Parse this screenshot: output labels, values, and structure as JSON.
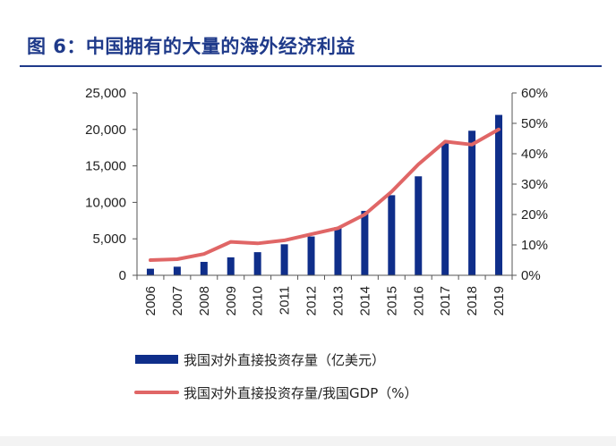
{
  "figure": {
    "title": "图 6：中国拥有的大量的海外经济利益"
  },
  "colors": {
    "title": "#1f3a8a",
    "bar": "#0f2e8a",
    "line": "#e06666",
    "axis": "#555555"
  },
  "chart_data": {
    "type": "bar",
    "categories": [
      "2006",
      "2007",
      "2008",
      "2009",
      "2010",
      "2011",
      "2012",
      "2013",
      "2014",
      "2015",
      "2016",
      "2017",
      "2018",
      "2019"
    ],
    "series": [
      {
        "name": "我国对外直接投资存量（亿美元）",
        "type": "bar",
        "axis": "left",
        "values": [
          900,
          1180,
          1840,
          2460,
          3170,
          4250,
          5320,
          6600,
          8830,
          10980,
          13570,
          18090,
          19820,
          21990
        ]
      },
      {
        "name": "我国对外直接投资存量/我国GDP（%）",
        "type": "line",
        "axis": "right",
        "values": [
          5.0,
          5.3,
          7.0,
          11.0,
          10.5,
          11.5,
          13.5,
          15.5,
          20.0,
          27.5,
          36.5,
          44.0,
          43.0,
          48.0
        ]
      }
    ],
    "yleft": {
      "ylim": [
        0,
        25000
      ],
      "ticks": [
        "0",
        "5,000",
        "10,000",
        "15,000",
        "20,000",
        "25,000"
      ]
    },
    "yright": {
      "ylim": [
        0,
        60
      ],
      "ticks": [
        "0%",
        "10%",
        "20%",
        "30%",
        "40%",
        "50%",
        "60%"
      ]
    },
    "grid": false,
    "legend_position": "bottom"
  }
}
